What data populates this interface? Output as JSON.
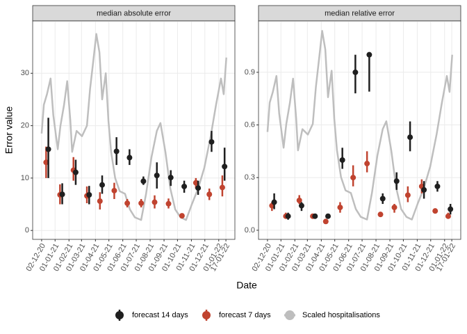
{
  "xlabel": "Date",
  "ylabel": "Error value",
  "legend": [
    {
      "name": "forecast 14 days",
      "color": "#1f1f1f"
    },
    {
      "name": "forecast 7 days",
      "color": "#c0432f"
    },
    {
      "name": "Scaled hospitalisations",
      "color": "#bebebe"
    }
  ],
  "chart_data": [
    {
      "type": "line",
      "title": "median absolute error",
      "xlim": [
        "2020-11-12",
        "2022-02-06"
      ],
      "xticks": [
        {
          "value": "2020-12-02",
          "label": "02-12-20"
        },
        {
          "value": "2021-01-01",
          "label": "01-01-21"
        },
        {
          "value": "2021-02-01",
          "label": "01-02-21"
        },
        {
          "value": "2021-03-01",
          "label": "01-03-21"
        },
        {
          "value": "2021-04-01",
          "label": "01-04-21"
        },
        {
          "value": "2021-05-01",
          "label": "01-05-21"
        },
        {
          "value": "2021-06-01",
          "label": "01-06-21"
        },
        {
          "value": "2021-07-01",
          "label": "01-07-21"
        },
        {
          "value": "2021-08-01",
          "label": "01-08-21"
        },
        {
          "value": "2021-09-01",
          "label": "01-09-21"
        },
        {
          "value": "2021-10-01",
          "label": "01-10-21"
        },
        {
          "value": "2021-11-01",
          "label": "01-11-21"
        },
        {
          "value": "2021-12-01",
          "label": "01-12-21"
        },
        {
          "value": "2022-01-01",
          "label": "01-01-22"
        },
        {
          "value": "2022-01-17",
          "label": "17-01-22"
        }
      ],
      "ylim": [
        -1.7,
        40
      ],
      "yticks": [
        0,
        10,
        20,
        30
      ],
      "grid": true,
      "series": [
        {
          "x": [
            "2020-12-17",
            "2021-01-17",
            "2021-02-16",
            "2021-03-18",
            "2021-04-16",
            "2021-05-18",
            "2021-06-16",
            "2021-07-17",
            "2021-08-16",
            "2021-09-16",
            "2021-10-16",
            "2021-11-16",
            "2021-12-16",
            "2022-01-14"
          ],
          "values": [
            15.5,
            6.9,
            11.1,
            6.8,
            8.7,
            15.1,
            13.9,
            9.4,
            10.5,
            10.1,
            8.4,
            8.1,
            16.9,
            12.2
          ],
          "low": [
            10,
            5,
            8.7,
            5,
            7,
            12.5,
            12.5,
            8.7,
            8,
            8.5,
            7.2,
            6.8,
            15,
            9.5
          ],
          "high": [
            21.5,
            9,
            13.5,
            8.5,
            10.5,
            17.8,
            15.5,
            10.3,
            13,
            11.5,
            9.5,
            9.5,
            19,
            15.8
          ]
        },
        {
          "x": [
            "2020-12-12",
            "2021-01-12",
            "2021-02-11",
            "2021-03-13",
            "2021-04-11",
            "2021-05-13",
            "2021-06-11",
            "2021-07-12",
            "2021-08-11",
            "2021-09-11",
            "2021-10-11",
            "2021-11-11",
            "2021-12-11",
            "2022-01-09"
          ],
          "values": [
            13,
            6.8,
            11.5,
            6.6,
            5.6,
            7.6,
            5.2,
            5.2,
            5.4,
            5.1,
            2.8,
            9.1,
            6.9,
            8.2
          ],
          "low": [
            10,
            5,
            9.5,
            5.2,
            4,
            6,
            4.4,
            4.4,
            4.2,
            4.2,
            2.5,
            8,
            5.8,
            6.5
          ],
          "high": [
            16,
            8.8,
            14,
            8.4,
            7.3,
            9.1,
            6,
            6,
            6.7,
            6.1,
            3.2,
            10,
            8,
            10.5
          ]
        },
        {
          "x": [
            "2020-12-02",
            "2020-12-07",
            "2020-12-14",
            "2020-12-22",
            "2020-12-28",
            "2021-01-07",
            "2021-01-13",
            "2021-01-21",
            "2021-01-28",
            "2021-02-04",
            "2021-02-08",
            "2021-02-18",
            "2021-03-02",
            "2021-03-13",
            "2021-03-20",
            "2021-03-28",
            "2021-04-03",
            "2021-04-10",
            "2021-04-16",
            "2021-04-24",
            "2021-04-30",
            "2021-05-06",
            "2021-05-15",
            "2021-05-25",
            "2021-06-06",
            "2021-06-17",
            "2021-06-28",
            "2021-07-12",
            "2021-07-23",
            "2021-08-04",
            "2021-08-16",
            "2021-08-24",
            "2021-09-04",
            "2021-09-15",
            "2021-09-26",
            "2021-10-08",
            "2021-10-20",
            "2021-11-02",
            "2021-11-16",
            "2021-11-30",
            "2021-12-14",
            "2021-12-26",
            "2022-01-06",
            "2022-01-12",
            "2022-01-18"
          ],
          "values": [
            18.5,
            24,
            26,
            29,
            22,
            15.5,
            20,
            24,
            28.5,
            21,
            15,
            19,
            18,
            20,
            27,
            33,
            37.5,
            34,
            25,
            30,
            21,
            15,
            10,
            7.5,
            7,
            4,
            2.5,
            2,
            7,
            14,
            19,
            20.5,
            15,
            8,
            4,
            2.5,
            2,
            5,
            8,
            12,
            18,
            24,
            29,
            26,
            33
          ]
        }
      ]
    },
    {
      "type": "line",
      "title": "median relative error",
      "xlim": [
        "2020-11-12",
        "2022-02-06"
      ],
      "xticks": [
        {
          "value": "2020-12-02",
          "label": "02-12-20"
        },
        {
          "value": "2021-01-01",
          "label": "01-01-21"
        },
        {
          "value": "2021-02-01",
          "label": "01-02-21"
        },
        {
          "value": "2021-03-01",
          "label": "01-03-21"
        },
        {
          "value": "2021-04-01",
          "label": "01-04-21"
        },
        {
          "value": "2021-05-01",
          "label": "01-05-21"
        },
        {
          "value": "2021-06-01",
          "label": "01-06-21"
        },
        {
          "value": "2021-07-01",
          "label": "01-07-21"
        },
        {
          "value": "2021-08-01",
          "label": "01-08-21"
        },
        {
          "value": "2021-09-01",
          "label": "01-09-21"
        },
        {
          "value": "2021-10-01",
          "label": "01-10-21"
        },
        {
          "value": "2021-11-01",
          "label": "01-11-21"
        },
        {
          "value": "2021-12-01",
          "label": "01-12-21"
        },
        {
          "value": "2022-01-01",
          "label": "01-01-22"
        },
        {
          "value": "2022-01-17",
          "label": "17-01-22"
        }
      ],
      "ylim": [
        -0.052,
        1.193
      ],
      "yticks": [
        {
          "value": 0,
          "label": "0.0"
        },
        0.3,
        0.6,
        0.9
      ],
      "grid": true,
      "series": [
        {
          "x": [
            "2020-12-17",
            "2021-01-17",
            "2021-02-16",
            "2021-03-18",
            "2021-04-16",
            "2021-05-18",
            "2021-06-16",
            "2021-07-17",
            "2021-08-16",
            "2021-09-16",
            "2021-10-16",
            "2021-11-16",
            "2021-12-16",
            "2022-01-14"
          ],
          "values": [
            0.16,
            0.08,
            0.14,
            0.08,
            0.08,
            0.4,
            0.9,
            1.0,
            0.18,
            0.28,
            0.53,
            0.23,
            0.25,
            0.12
          ],
          "low": [
            0.12,
            0.06,
            0.11,
            0.07,
            0.07,
            0.35,
            0.78,
            0.79,
            0.15,
            0.23,
            0.45,
            0.18,
            0.22,
            0.09
          ],
          "high": [
            0.21,
            0.1,
            0.16,
            0.09,
            0.09,
            0.47,
            1.0,
            1.0,
            0.21,
            0.33,
            0.62,
            0.28,
            0.28,
            0.15
          ]
        },
        {
          "x": [
            "2020-12-12",
            "2021-01-12",
            "2021-02-11",
            "2021-03-13",
            "2021-04-11",
            "2021-05-13",
            "2021-06-11",
            "2021-07-12",
            "2021-08-11",
            "2021-09-11",
            "2021-10-11",
            "2021-11-11",
            "2021-12-11",
            "2022-01-09"
          ],
          "values": [
            0.14,
            0.08,
            0.17,
            0.08,
            0.05,
            0.13,
            0.3,
            0.38,
            0.09,
            0.13,
            0.2,
            0.25,
            0.11,
            0.08
          ],
          "low": [
            0.11,
            0.07,
            0.15,
            0.07,
            0.04,
            0.1,
            0.25,
            0.33,
            0.08,
            0.1,
            0.16,
            0.21,
            0.1,
            0.07
          ],
          "high": [
            0.16,
            0.1,
            0.2,
            0.09,
            0.06,
            0.16,
            0.37,
            0.45,
            0.1,
            0.15,
            0.25,
            0.29,
            0.12,
            0.1
          ]
        },
        {
          "x": [
            "2020-12-02",
            "2020-12-07",
            "2020-12-14",
            "2020-12-22",
            "2020-12-28",
            "2021-01-07",
            "2021-01-13",
            "2021-01-21",
            "2021-01-28",
            "2021-02-04",
            "2021-02-08",
            "2021-02-18",
            "2021-03-02",
            "2021-03-13",
            "2021-03-20",
            "2021-03-28",
            "2021-04-03",
            "2021-04-10",
            "2021-04-16",
            "2021-04-24",
            "2021-04-30",
            "2021-05-06",
            "2021-05-15",
            "2021-05-25",
            "2021-06-06",
            "2021-06-17",
            "2021-06-28",
            "2021-07-12",
            "2021-07-23",
            "2021-08-04",
            "2021-08-16",
            "2021-08-24",
            "2021-09-04",
            "2021-09-15",
            "2021-09-26",
            "2021-10-08",
            "2021-10-20",
            "2021-11-02",
            "2021-11-16",
            "2021-11-30",
            "2021-12-14",
            "2021-12-26",
            "2022-01-06",
            "2022-01-12",
            "2022-01-18"
          ],
          "values": [
            0.56,
            0.727,
            0.788,
            0.879,
            0.667,
            0.47,
            0.606,
            0.727,
            0.864,
            0.636,
            0.455,
            0.576,
            0.545,
            0.606,
            0.818,
            1.0,
            1.136,
            1.03,
            0.758,
            0.909,
            0.636,
            0.455,
            0.303,
            0.227,
            0.212,
            0.121,
            0.076,
            0.061,
            0.212,
            0.424,
            0.576,
            0.621,
            0.455,
            0.242,
            0.121,
            0.076,
            0.061,
            0.152,
            0.242,
            0.364,
            0.545,
            0.727,
            0.879,
            0.788,
            1.0
          ]
        }
      ]
    }
  ]
}
